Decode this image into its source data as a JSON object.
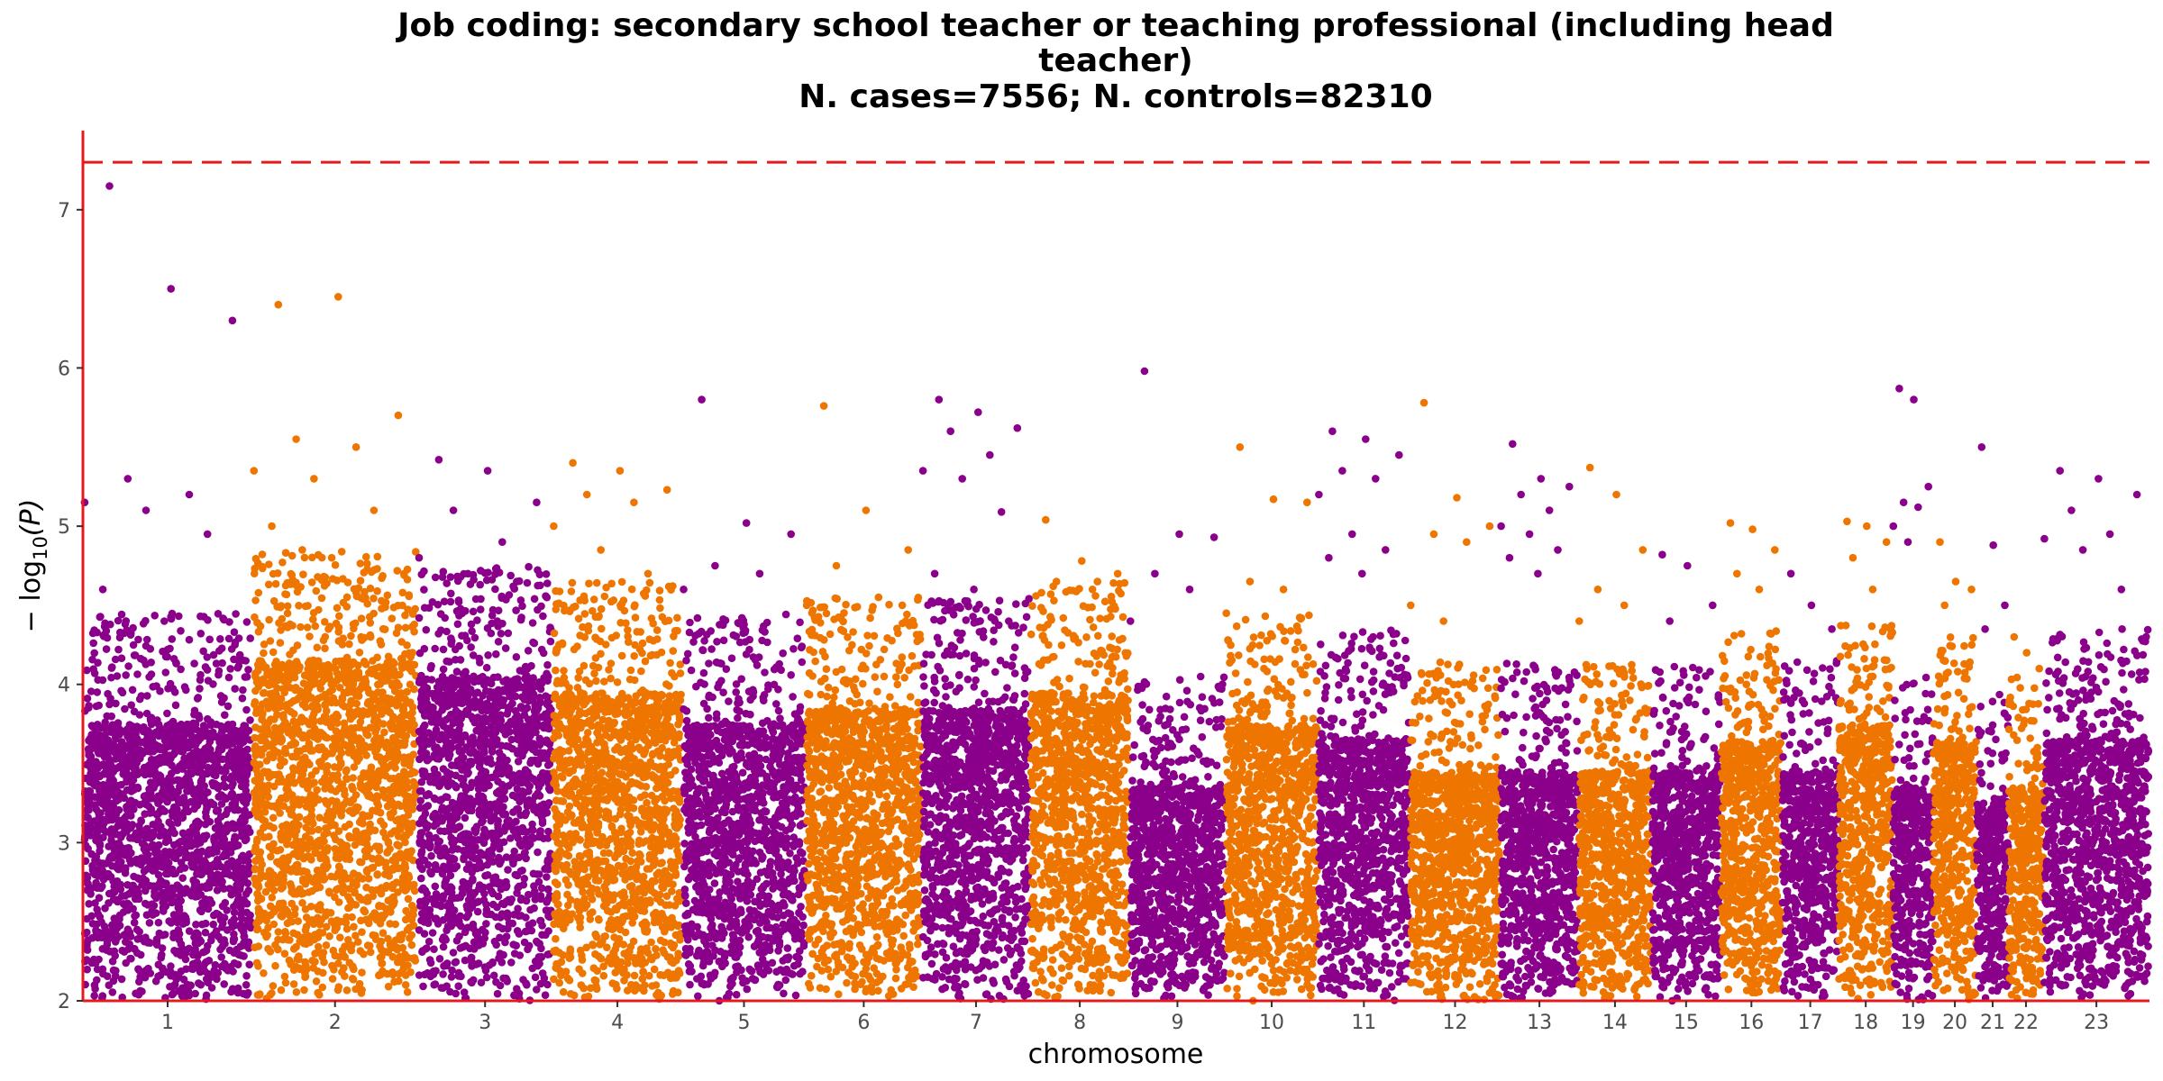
{
  "chart_data": {
    "type": "scatter",
    "title_lines": [
      "Job coding: secondary school teacher or teaching professional (including head",
      "teacher)",
      "N. cases=7556; N. controls=82310"
    ],
    "xlabel": "chromosome",
    "ylabel_prefix": "− log",
    "ylabel_sub": "10",
    "ylabel_suffix": "(P)",
    "ylim": [
      2,
      7.5
    ],
    "yticks": [
      2,
      3,
      4,
      5,
      6,
      7
    ],
    "threshold": 7.3,
    "threshold_color": "#e41a1c",
    "axis_color": "#e41a1c",
    "series_colors": [
      "#8b008b",
      "#ee7600"
    ],
    "chromosomes": [
      {
        "label": "1",
        "size": 249,
        "ceiling": 4.3,
        "top": [
          7.15,
          6.5,
          6.3,
          5.3,
          5.2,
          5.15,
          5.1,
          4.95,
          4.6,
          4.4
        ]
      },
      {
        "label": "2",
        "size": 243,
        "ceiling": 4.7,
        "top": [
          6.4,
          6.45,
          5.7,
          5.55,
          5.5,
          5.35,
          5.3,
          5.1,
          5.0,
          4.8
        ]
      },
      {
        "label": "3",
        "size": 198,
        "ceiling": 4.6,
        "top": [
          5.42,
          5.35,
          5.15,
          5.1,
          4.9,
          4.8,
          4.7,
          4.65
        ]
      },
      {
        "label": "4",
        "size": 191,
        "ceiling": 4.5,
        "top": [
          5.4,
          5.35,
          5.23,
          5.2,
          5.15,
          5.0,
          4.85,
          4.7
        ]
      },
      {
        "label": "5",
        "size": 181,
        "ceiling": 4.3,
        "top": [
          5.8,
          5.02,
          4.95,
          4.75,
          4.7,
          4.6
        ]
      },
      {
        "label": "6",
        "size": 171,
        "ceiling": 4.4,
        "top": [
          5.76,
          5.1,
          4.85,
          4.75,
          4.55,
          4.5
        ]
      },
      {
        "label": "7",
        "size": 159,
        "ceiling": 4.4,
        "top": [
          5.8,
          5.72,
          5.62,
          5.6,
          5.45,
          5.35,
          5.3,
          5.09,
          4.7,
          4.6
        ]
      },
      {
        "label": "8",
        "size": 146,
        "ceiling": 4.5,
        "top": [
          5.04,
          4.78,
          4.7,
          4.65,
          4.6
        ]
      },
      {
        "label": "9",
        "size": 141,
        "ceiling": 3.9,
        "top": [
          5.98,
          4.95,
          4.93,
          4.7,
          4.6,
          4.4
        ]
      },
      {
        "label": "10",
        "size": 136,
        "ceiling": 4.3,
        "top": [
          5.5,
          5.17,
          5.15,
          4.65,
          4.6,
          4.45
        ]
      },
      {
        "label": "11",
        "size": 135,
        "ceiling": 4.2,
        "top": [
          5.6,
          5.55,
          5.45,
          5.35,
          5.3,
          5.2,
          4.95,
          4.85,
          4.8,
          4.7
        ]
      },
      {
        "label": "12",
        "size": 133,
        "ceiling": 4.0,
        "top": [
          5.78,
          5.18,
          5.0,
          4.95,
          4.9,
          4.5,
          4.4
        ]
      },
      {
        "label": "13",
        "size": 115,
        "ceiling": 4.0,
        "top": [
          5.52,
          5.3,
          5.25,
          5.2,
          5.1,
          5.0,
          4.95,
          4.85,
          4.8,
          4.7
        ]
      },
      {
        "label": "14",
        "size": 107,
        "ceiling": 4.0,
        "top": [
          5.37,
          5.2,
          4.85,
          4.6,
          4.5,
          4.4
        ]
      },
      {
        "label": "15",
        "size": 102,
        "ceiling": 4.0,
        "top": [
          4.82,
          4.75,
          4.5,
          4.4
        ]
      },
      {
        "label": "16",
        "size": 90,
        "ceiling": 4.2,
        "top": [
          5.02,
          4.98,
          4.85,
          4.7,
          4.6
        ]
      },
      {
        "label": "17",
        "size": 83,
        "ceiling": 4.0,
        "top": [
          4.7,
          4.5,
          4.35
        ]
      },
      {
        "label": "18",
        "size": 80,
        "ceiling": 4.3,
        "top": [
          5.03,
          5.0,
          4.9,
          4.8,
          4.6
        ]
      },
      {
        "label": "19",
        "size": 59,
        "ceiling": 3.9,
        "top": [
          5.87,
          5.8,
          5.25,
          5.15,
          5.12,
          5.0,
          4.9
        ]
      },
      {
        "label": "20",
        "size": 64,
        "ceiling": 4.2,
        "top": [
          4.9,
          4.65,
          4.6,
          4.5
        ]
      },
      {
        "label": "21",
        "size": 47,
        "ceiling": 3.8,
        "top": [
          5.5,
          4.88,
          4.5,
          4.35
        ]
      },
      {
        "label": "22",
        "size": 51,
        "ceiling": 3.9,
        "top": [
          4.3,
          4.2,
          4.1
        ]
      },
      {
        "label": "23",
        "size": 156,
        "ceiling": 4.2,
        "top": [
          5.35,
          5.3,
          5.2,
          5.1,
          4.95,
          4.92,
          4.85,
          4.6
        ]
      }
    ]
  }
}
